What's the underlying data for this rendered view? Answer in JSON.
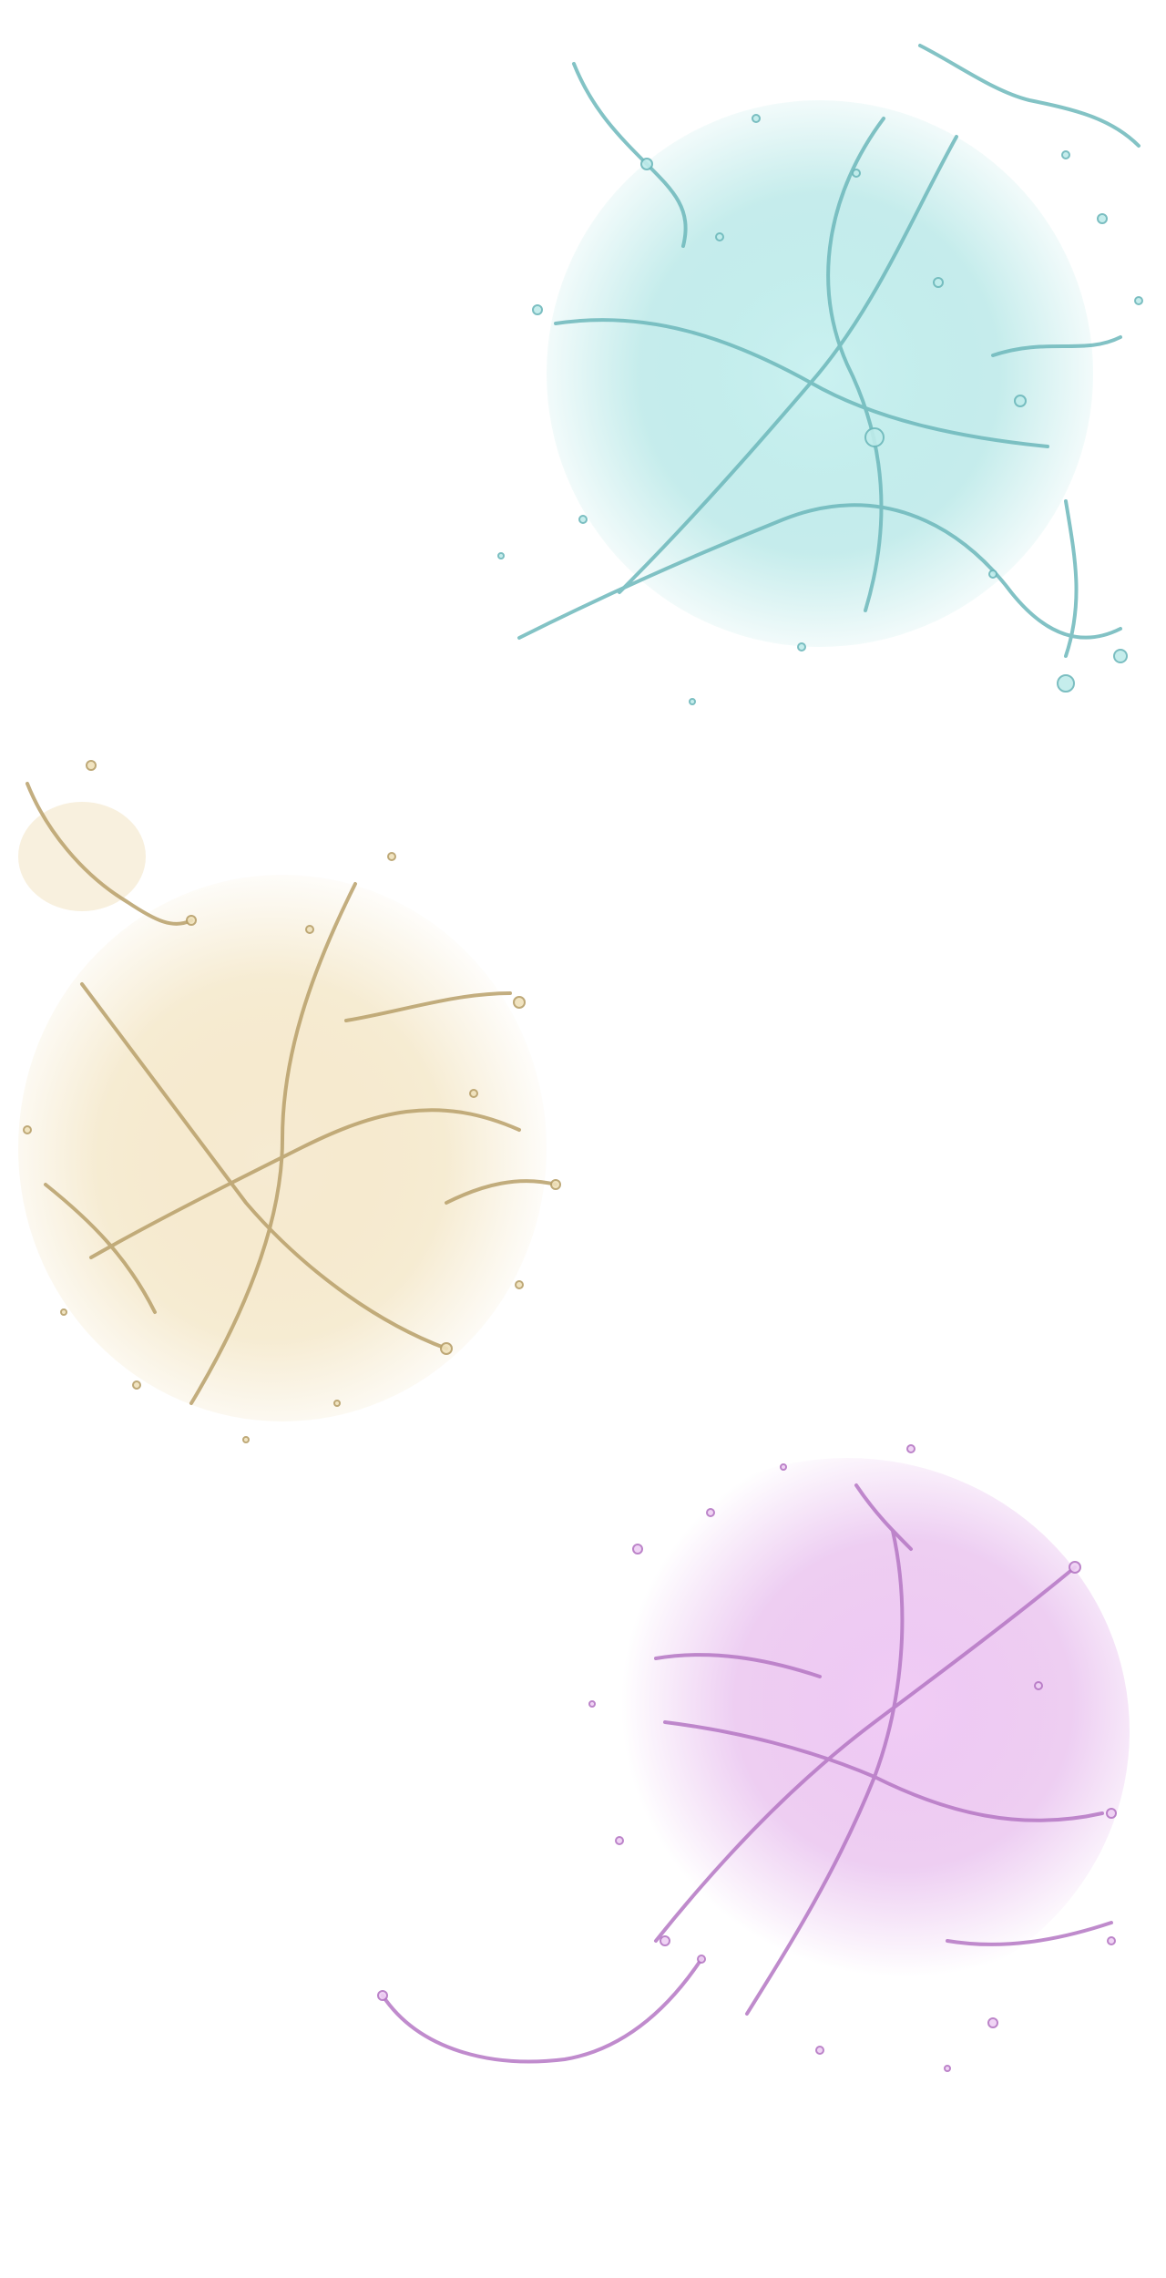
{
  "scene": {
    "description_type": "three liquid splashes on white background",
    "background_color": "#ffffff",
    "splashes": [
      {
        "name": "cyan-splash",
        "color": "#8fd8d8",
        "edge_color": "#5aa8ad"
      },
      {
        "name": "gold-splash",
        "color": "#ecd9a8",
        "edge_color": "#b39a5c"
      },
      {
        "name": "violet-splash",
        "color": "#dba6e6",
        "edge_color": "#a863b8"
      }
    ]
  }
}
